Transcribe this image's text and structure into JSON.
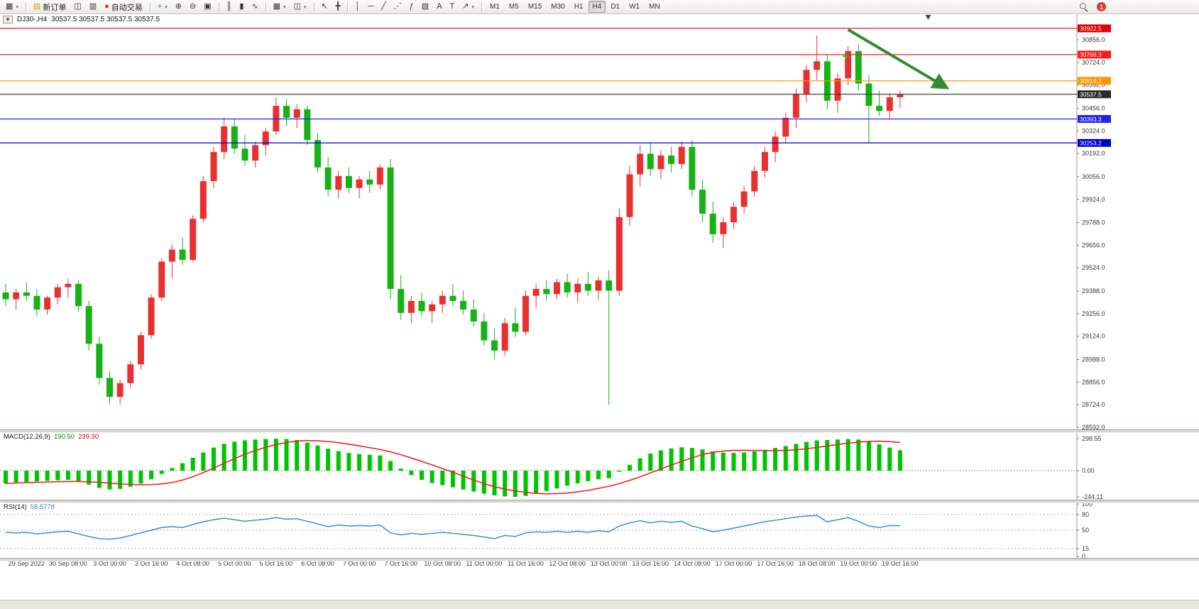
{
  "icons": {
    "oneclick": "▼"
  },
  "toolbar": {
    "notification_count": "1",
    "active_timeframe": "H4",
    "timeframes": [
      "M1",
      "M5",
      "M15",
      "M30",
      "H1",
      "H4",
      "D1",
      "W1",
      "MN"
    ],
    "items": [
      {
        "name": "new-chart",
        "glyph": "▦",
        "dd": true
      },
      {
        "sep": true
      },
      {
        "name": "new-order",
        "glyph": "▤",
        "glyph_color": "#c9a300",
        "label": "新订单"
      },
      {
        "name": "chart-profiles",
        "glyph": "◫"
      },
      {
        "name": "terminal-window",
        "glyph": "▥"
      },
      {
        "name": "autotrading",
        "glyph": "●",
        "glyph_color": "#d22c2c",
        "label": "自动交易"
      },
      {
        "sep": true
      },
      {
        "name": "indicators",
        "glyph": "+",
        "glyph_color": "#1c9a1c",
        "dd": true
      },
      {
        "name": "zoom-in",
        "glyph": "⊕"
      },
      {
        "name": "zoom-out",
        "glyph": "⊖"
      },
      {
        "name": "tile-windows",
        "glyph": "▣"
      },
      {
        "sep": true
      },
      {
        "name": "chart-bars",
        "glyph": "║"
      },
      {
        "name": "chart-candles",
        "glyph": "▮"
      },
      {
        "name": "chart-line",
        "glyph": "∿"
      },
      {
        "sep": true
      },
      {
        "name": "templates",
        "glyph": "▦",
        "dd": true
      },
      {
        "name": "period-selector",
        "glyph": "◫",
        "dd": true
      },
      {
        "sep": true
      },
      {
        "name": "cursor",
        "glyph": "↖"
      },
      {
        "name": "crosshair",
        "glyph": "╋"
      },
      {
        "sep": true
      },
      {
        "name": "vertical-line",
        "glyph": "│"
      },
      {
        "name": "horizontal-line",
        "glyph": "─"
      },
      {
        "name": "trendline",
        "glyph": "╱"
      },
      {
        "name": "equidistant-channel",
        "glyph": "⋰"
      },
      {
        "name": "fibonacci",
        "glyph": "ƒ"
      },
      {
        "name": "shapes",
        "glyph": "▧"
      },
      {
        "name": "text",
        "glyph": "A"
      },
      {
        "name": "text-label",
        "glyph": "T"
      },
      {
        "name": "arrows",
        "glyph": "↗",
        "dd": true
      },
      {
        "sep": true
      }
    ]
  },
  "main_chart": {
    "symbol_period": "DJ30-,H4",
    "ohlc": "30537.5 30537.5 30537.5 30537.5"
  },
  "macd": {
    "header": "MACD(12,26,9)",
    "value_main": "190.50",
    "value_signal": "239.30",
    "axis": [
      "298.55",
      "0.00",
      "-244.11"
    ]
  },
  "rsi": {
    "header": "RSI(14)",
    "value": "58.5778",
    "levels": [
      100,
      80,
      50,
      15,
      0
    ]
  },
  "chart_data": {
    "type": "candlestick",
    "symbol": "DJ30-",
    "period": "H4",
    "up_color": "#e8312f",
    "down_color": "#16b216",
    "macd_color": "#00c400",
    "signal_color": "#ee2222",
    "rsi_color": "#2f8fde",
    "price_range": {
      "min": 28592,
      "max": 30856
    },
    "macd_range": {
      "min": -244.11,
      "max": 298.55
    },
    "price_axis_ticks": [
      "30856.0",
      "30724.0",
      "30592.0",
      "30456.0",
      "30324.0",
      "30192.0",
      "30056.0",
      "29924.0",
      "29788.0",
      "29656.0",
      "29524.0",
      "29388.0",
      "29256.0",
      "29124.0",
      "28988.0",
      "28856.0",
      "28724.0",
      "28592.0"
    ],
    "time_labels": [
      "29 Sep 2022",
      "30 Sep 08:00",
      "3 Oct 00:00",
      "3 Oct 16:00",
      "4 Oct 08:00",
      "5 Oct 00:00",
      "5 Oct 16:00",
      "6 Oct 08:00",
      "7 Oct 00:00",
      "7 Oct 16:00",
      "10 Oct 08:00",
      "11 Oct 00:00",
      "11 Oct 16:00",
      "12 Oct 08:00",
      "13 Oct 00:00",
      "13 Oct 16:00",
      "14 Oct 08:00",
      "17 Oct 00:00",
      "17 Oct 16:00",
      "18 Oct 08:00",
      "19 Oct 00:00",
      "19 Oct 16:00"
    ],
    "label_first_index": 2,
    "label_step": 4,
    "hlines": [
      {
        "price": 30922.5,
        "tag": "30922.5",
        "color": "#e00000"
      },
      {
        "price": 30769.3,
        "tag": "30769.3",
        "color": "#ff1a1a"
      },
      {
        "price": 30616.1,
        "tag": "30616.1",
        "color": "#ff9800"
      },
      {
        "price": 30537.5,
        "tag": "30537.5",
        "color": "#2b2b2b"
      },
      {
        "price": 30393.3,
        "tag": "30393.3",
        "color": "#2222ee"
      },
      {
        "price": 30253.2,
        "tag": "30253.2",
        "color": "#0000cd"
      }
    ],
    "trend_arrow": {
      "from_index": 81,
      "from_price": 30915,
      "to_index": 90.5,
      "to_price": 30575,
      "color": "#358a35"
    },
    "plus_marker": {
      "index": 80.8,
      "price": 30760,
      "color": "#3fae49"
    },
    "shift_marker_index": 88.7,
    "candles": [
      [
        29380,
        29430,
        29300,
        29340
      ],
      [
        29340,
        29400,
        29280,
        29380
      ],
      [
        29380,
        29440,
        29330,
        29360
      ],
      [
        29360,
        29400,
        29240,
        29280
      ],
      [
        29280,
        29360,
        29250,
        29350
      ],
      [
        29350,
        29430,
        29310,
        29410
      ],
      [
        29410,
        29460,
        29350,
        29430
      ],
      [
        29430,
        29450,
        29270,
        29300
      ],
      [
        29300,
        29330,
        29040,
        29080
      ],
      [
        29080,
        29120,
        28840,
        28880
      ],
      [
        28880,
        28920,
        28730,
        28770
      ],
      [
        28770,
        28870,
        28724,
        28850
      ],
      [
        28850,
        28980,
        28820,
        28960
      ],
      [
        28960,
        29150,
        28930,
        29130
      ],
      [
        29130,
        29370,
        29110,
        29350
      ],
      [
        29350,
        29580,
        29330,
        29560
      ],
      [
        29560,
        29660,
        29460,
        29630
      ],
      [
        29630,
        29700,
        29540,
        29570
      ],
      [
        29570,
        29830,
        29560,
        29810
      ],
      [
        29810,
        30060,
        29790,
        30030
      ],
      [
        30030,
        30230,
        29990,
        30200
      ],
      [
        30200,
        30400,
        30160,
        30350
      ],
      [
        30350,
        30390,
        30190,
        30220
      ],
      [
        30220,
        30300,
        30120,
        30150
      ],
      [
        30150,
        30260,
        30110,
        30240
      ],
      [
        30240,
        30340,
        30180,
        30320
      ],
      [
        30320,
        30520,
        30300,
        30470
      ],
      [
        30470,
        30510,
        30350,
        30400
      ],
      [
        30400,
        30480,
        30340,
        30450
      ],
      [
        30450,
        30470,
        30240,
        30270
      ],
      [
        30270,
        30310,
        30080,
        30110
      ],
      [
        30110,
        30170,
        29940,
        29980
      ],
      [
        29980,
        30090,
        29930,
        30060
      ],
      [
        30060,
        30110,
        29960,
        29990
      ],
      [
        29990,
        30060,
        29930,
        30040
      ],
      [
        30040,
        30090,
        29960,
        30010
      ],
      [
        30010,
        30130,
        29980,
        30110
      ],
      [
        30110,
        30160,
        29340,
        29400
      ],
      [
        29400,
        29480,
        29220,
        29260
      ],
      [
        29260,
        29360,
        29200,
        29330
      ],
      [
        29330,
        29380,
        29240,
        29270
      ],
      [
        29270,
        29330,
        29200,
        29310
      ],
      [
        29310,
        29390,
        29260,
        29360
      ],
      [
        29360,
        29430,
        29300,
        29330
      ],
      [
        29330,
        29390,
        29250,
        29280
      ],
      [
        29280,
        29340,
        29180,
        29210
      ],
      [
        29210,
        29260,
        29070,
        29100
      ],
      [
        29100,
        29170,
        28990,
        29040
      ],
      [
        29040,
        29230,
        29010,
        29200
      ],
      [
        29200,
        29290,
        29120,
        29150
      ],
      [
        29150,
        29390,
        29130,
        29360
      ],
      [
        29360,
        29430,
        29290,
        29400
      ],
      [
        29400,
        29450,
        29330,
        29370
      ],
      [
        29370,
        29460,
        29340,
        29440
      ],
      [
        29440,
        29490,
        29350,
        29380
      ],
      [
        29380,
        29460,
        29320,
        29430
      ],
      [
        29430,
        29500,
        29360,
        29390
      ],
      [
        29390,
        29470,
        29340,
        29450
      ],
      [
        29450,
        29510,
        28724,
        29390
      ],
      [
        29390,
        29870,
        29360,
        29820
      ],
      [
        29820,
        30120,
        29770,
        30070
      ],
      [
        30070,
        30240,
        30000,
        30190
      ],
      [
        30190,
        30250,
        30060,
        30100
      ],
      [
        30100,
        30210,
        30040,
        30180
      ],
      [
        30180,
        30230,
        30080,
        30130
      ],
      [
        30130,
        30260,
        30100,
        30230
      ],
      [
        30230,
        30270,
        29940,
        29980
      ],
      [
        29980,
        30040,
        29790,
        29840
      ],
      [
        29840,
        29910,
        29670,
        29720
      ],
      [
        29720,
        29820,
        29640,
        29790
      ],
      [
        29790,
        29910,
        29750,
        29880
      ],
      [
        29880,
        30000,
        29840,
        29970
      ],
      [
        29970,
        30120,
        29940,
        30090
      ],
      [
        30090,
        30230,
        30050,
        30200
      ],
      [
        30200,
        30320,
        30140,
        30290
      ],
      [
        30290,
        30430,
        30250,
        30400
      ],
      [
        30400,
        30570,
        30340,
        30540
      ],
      [
        30540,
        30710,
        30490,
        30680
      ],
      [
        30680,
        30880,
        30620,
        30730
      ],
      [
        30730,
        30770,
        30450,
        30500
      ],
      [
        30500,
        30660,
        30430,
        30630
      ],
      [
        30630,
        30820,
        30590,
        30790
      ],
      [
        30790,
        30830,
        30560,
        30600
      ],
      [
        30600,
        30650,
        30250,
        30470
      ],
      [
        30470,
        30560,
        30410,
        30440
      ],
      [
        30440,
        30540,
        30390,
        30520
      ],
      [
        30520,
        30560,
        30460,
        30537.5
      ]
    ],
    "macd_hist": [
      -120,
      -110,
      -105,
      -100,
      -95,
      -90,
      -85,
      -100,
      -130,
      -160,
      -175,
      -170,
      -150,
      -120,
      -80,
      -30,
      25,
      70,
      120,
      170,
      215,
      250,
      270,
      283,
      290,
      295,
      298.5,
      295,
      285,
      262,
      235,
      205,
      182,
      165,
      155,
      148,
      142,
      90,
      20,
      -40,
      -85,
      -115,
      -135,
      -155,
      -175,
      -195,
      -215,
      -230,
      -240,
      -244,
      -235,
      -215,
      -190,
      -165,
      -140,
      -118,
      -98,
      -80,
      -70,
      -10,
      55,
      115,
      160,
      190,
      208,
      218,
      212,
      198,
      180,
      168,
      165,
      170,
      180,
      195,
      212,
      230,
      250,
      268,
      282,
      286,
      290,
      294,
      290,
      272,
      245,
      215,
      190.5
    ],
    "rsi_values": [
      46,
      45,
      46,
      43,
      45,
      47,
      48,
      43,
      38,
      34,
      33,
      35,
      40,
      45,
      50,
      55,
      57,
      55,
      61,
      66,
      70,
      73,
      70,
      67,
      69,
      71,
      74,
      71,
      72,
      67,
      62,
      57,
      60,
      58,
      59,
      58,
      60,
      45,
      41,
      44,
      42,
      44,
      46,
      44,
      42,
      40,
      37,
      34,
      40,
      38,
      45,
      47,
      46,
      48,
      46,
      48,
      46,
      49,
      47,
      58,
      64,
      68,
      64,
      67,
      65,
      67,
      58,
      53,
      47,
      50,
      54,
      58,
      62,
      66,
      69,
      72,
      75,
      77,
      78,
      66,
      70,
      74,
      67,
      58,
      55,
      59,
      58.58
    ]
  }
}
